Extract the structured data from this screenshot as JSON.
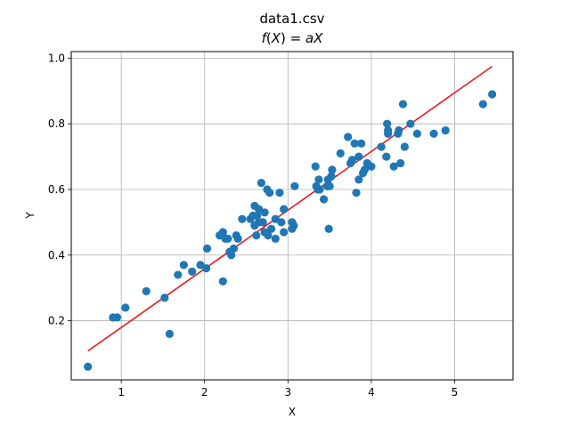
{
  "chart_data": {
    "type": "scatter",
    "title": "data1.csv",
    "subtitle": "f(X) = aX",
    "subtitle_parts": {
      "f": "f",
      "open": "(",
      "X": "X",
      "close": ")",
      "eq": " = ",
      "a": "a",
      "X2": "X"
    },
    "xlabel": "X",
    "ylabel": "Y",
    "xlim": [
      0.4,
      5.7
    ],
    "ylim": [
      0.02,
      1.02
    ],
    "xticks": [
      1,
      2,
      3,
      4,
      5
    ],
    "yticks": [
      0.2,
      0.4,
      0.6,
      0.8,
      1.0
    ],
    "xtick_labels": [
      "1",
      "2",
      "3",
      "4",
      "5"
    ],
    "ytick_labels": [
      "0.2",
      "0.4",
      "0.6",
      "0.8",
      "1.0"
    ],
    "grid": true,
    "marker_color": "#1f77b4",
    "line_color": "#e8191b",
    "fit_line": {
      "x": [
        0.6,
        5.45
      ],
      "y": [
        0.108,
        0.975
      ]
    },
    "series": [
      {
        "x": [
          0.6,
          0.9,
          0.95,
          1.05,
          1.3,
          1.52,
          1.58,
          1.68,
          1.75,
          1.85,
          1.95,
          2.02,
          2.03,
          2.18,
          2.22,
          2.22,
          2.25,
          2.28,
          2.3,
          2.32,
          2.35,
          2.38,
          2.4,
          2.45,
          2.55,
          2.58,
          2.6,
          2.6,
          2.62,
          2.63,
          2.65,
          2.65,
          2.68,
          2.7,
          2.72,
          2.72,
          2.75,
          2.76,
          2.78,
          2.8,
          2.85,
          2.85,
          2.9,
          2.92,
          2.95,
          2.95,
          3.05,
          3.05,
          3.07,
          3.08,
          3.33,
          3.34,
          3.36,
          3.37,
          3.38,
          3.43,
          3.47,
          3.48,
          3.49,
          3.5,
          3.52,
          3.53,
          3.63,
          3.72,
          3.75,
          3.77,
          3.8,
          3.82,
          3.85,
          3.85,
          3.88,
          3.9,
          3.92,
          3.95,
          4.0,
          4.12,
          4.18,
          4.19,
          4.2,
          4.2,
          4.27,
          4.32,
          4.33,
          4.35,
          4.38,
          4.4,
          4.47,
          4.55,
          4.75,
          4.89,
          5.34,
          5.45
        ],
        "y": [
          0.06,
          0.21,
          0.21,
          0.24,
          0.29,
          0.27,
          0.16,
          0.34,
          0.37,
          0.35,
          0.37,
          0.36,
          0.42,
          0.46,
          0.47,
          0.32,
          0.45,
          0.45,
          0.41,
          0.4,
          0.42,
          0.46,
          0.45,
          0.51,
          0.51,
          0.52,
          0.55,
          0.49,
          0.46,
          0.52,
          0.5,
          0.54,
          0.62,
          0.5,
          0.53,
          0.47,
          0.6,
          0.46,
          0.59,
          0.48,
          0.51,
          0.45,
          0.59,
          0.5,
          0.54,
          0.47,
          0.48,
          0.5,
          0.49,
          0.61,
          0.67,
          0.61,
          0.6,
          0.63,
          0.6,
          0.57,
          0.61,
          0.63,
          0.48,
          0.61,
          0.64,
          0.66,
          0.71,
          0.76,
          0.68,
          0.69,
          0.74,
          0.59,
          0.7,
          0.63,
          0.74,
          0.65,
          0.66,
          0.68,
          0.67,
          0.73,
          0.7,
          0.8,
          0.77,
          0.78,
          0.67,
          0.77,
          0.78,
          0.68,
          0.86,
          0.73,
          0.8,
          0.77,
          0.77,
          0.78,
          0.86,
          0.89
        ]
      }
    ]
  }
}
